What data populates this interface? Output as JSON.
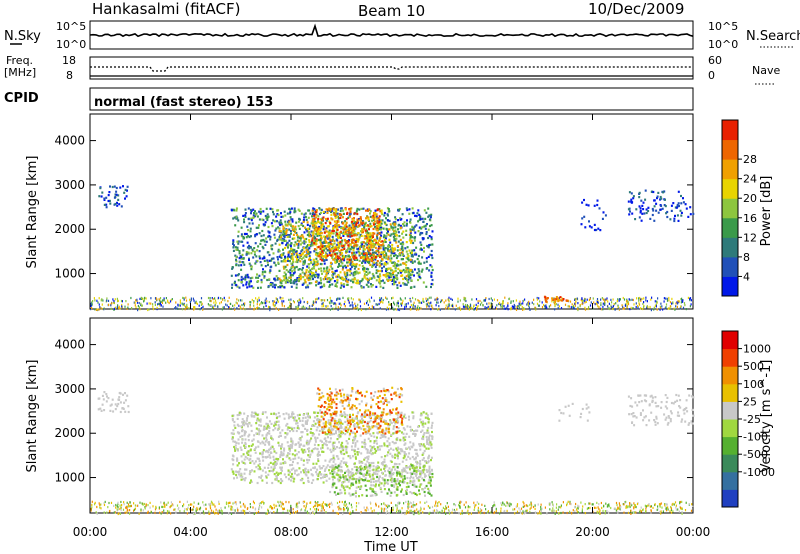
{
  "header": {
    "station": "Hankasalmi (fitACF)",
    "beam": "Beam 10",
    "date": "10/Dec/2009"
  },
  "nsky_panel": {
    "left_label": "N.Sky",
    "right_label": "N.Search",
    "tick_top": "10^5",
    "tick_bottom": "10^0"
  },
  "freq_panel": {
    "label_line1": "Freq.",
    "label_line2": "[MHz]",
    "tick_top": "18",
    "tick_bottom": "8",
    "right_top": "60",
    "right_bottom": "0",
    "right_label": "Nave"
  },
  "cpid_panel": {
    "label": "CPID",
    "text": "normal (fast stereo) 153"
  },
  "x_axis": {
    "ticks": [
      "00:00",
      "04:00",
      "08:00",
      "12:00",
      "16:00",
      "20:00",
      "00:00"
    ],
    "label": "Time UT"
  },
  "colorbars": {
    "power": {
      "label": "Power [dB]",
      "ticks": [
        "4",
        "8",
        "12",
        "16",
        "20",
        "24",
        "28"
      ],
      "colors": [
        "#0018e8",
        "#2050b8",
        "#2e7a7a",
        "#3a9a4a",
        "#8dc63f",
        "#e8d400",
        "#f0a000",
        "#ee6600",
        "#e82000"
      ]
    },
    "velocity": {
      "label": "Velocity [m s^-1]",
      "ticks": [
        "1000",
        "500",
        "100",
        "25",
        "-25",
        "-100",
        "-500",
        "-1000"
      ],
      "colors": [
        "#2040c0",
        "#3570a0",
        "#3a8a5a",
        "#55b030",
        "#a0d840",
        "#c8c8c8",
        "#e8c000",
        "#f09000",
        "#f04000",
        "#e00000"
      ]
    }
  },
  "chart_data": [
    {
      "type": "heatmap",
      "title": "Power",
      "ylabel": "Slant Range [km]",
      "xlabel": "",
      "yticks": [
        "1000",
        "2000",
        "3000",
        "4000"
      ],
      "ylim": [
        200,
        4600
      ],
      "xlim": [
        0,
        24
      ],
      "colorbar": "Power [dB]",
      "regions": [
        {
          "t0": 0.0,
          "t1": 24.0,
          "r0": 200,
          "r1": 480,
          "level": "mixed ground-scatter band"
        },
        {
          "t0": 0.3,
          "t1": 1.5,
          "r0": 2500,
          "r1": 3000,
          "level": "weak"
        },
        {
          "t0": 5.6,
          "t1": 13.6,
          "r0": 700,
          "r1": 2500,
          "level": "strong"
        },
        {
          "t0": 8.8,
          "t1": 11.6,
          "r0": 1300,
          "r1": 2500,
          "level": "peak 28"
        },
        {
          "t0": 18.0,
          "t1": 19.0,
          "r0": 390,
          "r1": 500,
          "level": "strong"
        },
        {
          "t0": 21.4,
          "t1": 24.0,
          "r0": 2200,
          "r1": 2900,
          "level": "weak"
        }
      ]
    },
    {
      "type": "heatmap",
      "title": "Velocity",
      "ylabel": "Slant Range [km]",
      "xlabel": "Time UT",
      "yticks": [
        "1000",
        "2000",
        "3000",
        "4000"
      ],
      "ylim": [
        200,
        4600
      ],
      "xlim": [
        0,
        24
      ],
      "colorbar": "Velocity [m s^-1]",
      "regions": [
        {
          "t0": 0.0,
          "t1": 24.0,
          "r0": 200,
          "r1": 480,
          "level": "mixed low velocity"
        },
        {
          "t0": 0.3,
          "t1": 1.5,
          "r0": 2500,
          "r1": 3000,
          "level": "~0 m/s"
        },
        {
          "t0": 5.6,
          "t1": 13.6,
          "r0": 900,
          "r1": 2500,
          "level": "~0 m/s"
        },
        {
          "t0": 9.0,
          "t1": 12.4,
          "r0": 2000,
          "r1": 3050,
          "level": "-100 to -500"
        },
        {
          "t0": 9.5,
          "t1": 13.6,
          "r0": 600,
          "r1": 1300,
          "level": "+25 to +100"
        },
        {
          "t0": 21.4,
          "t1": 24.0,
          "r0": 2200,
          "r1": 2900,
          "level": "~0 m/s"
        }
      ]
    }
  ]
}
